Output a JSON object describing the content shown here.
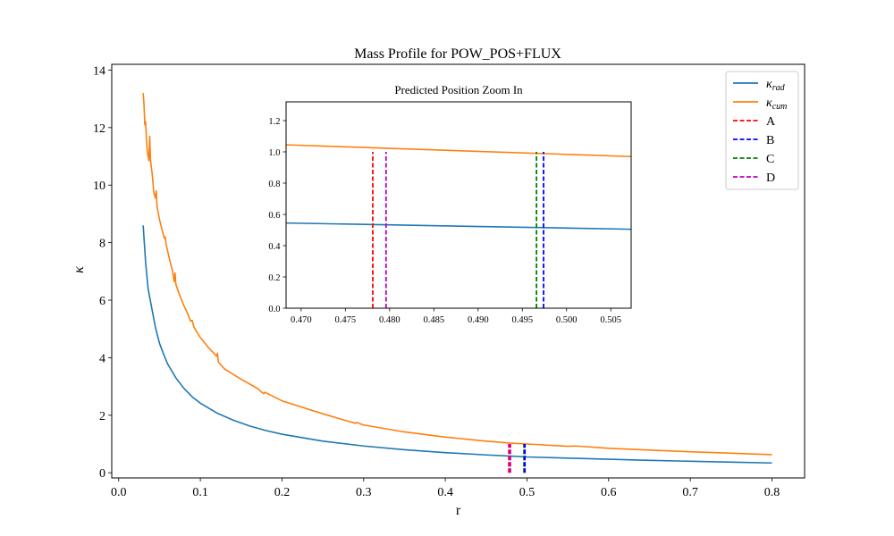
{
  "chart_data": [
    {
      "id": "main",
      "type": "line",
      "title": "Mass Profile for POW_POS+FLUX",
      "xlabel": "r",
      "ylabel": "κ",
      "xlim": [
        -0.0085,
        0.84
      ],
      "ylim": [
        -0.18,
        14.2
      ],
      "xticks": [
        0.0,
        0.1,
        0.2,
        0.3,
        0.4,
        0.5,
        0.6,
        0.7,
        0.8
      ],
      "xtick_labels": [
        "0.0",
        "0.1",
        "0.2",
        "0.3",
        "0.4",
        "0.5",
        "0.6",
        "0.7",
        "0.8"
      ],
      "yticks": [
        0,
        2,
        4,
        6,
        8,
        10,
        12,
        14
      ],
      "ytick_labels": [
        "0",
        "2",
        "4",
        "6",
        "8",
        "10",
        "12",
        "14"
      ],
      "series": [
        {
          "name": "κ_rad",
          "color": "#1f77b4",
          "points": [
            [
              0.03,
              8.6
            ],
            [
              0.033,
              7.3
            ],
            [
              0.036,
              6.4
            ],
            [
              0.04,
              5.8
            ],
            [
              0.045,
              5.05
            ],
            [
              0.05,
              4.5
            ],
            [
              0.055,
              4.12
            ],
            [
              0.06,
              3.78
            ],
            [
              0.07,
              3.3
            ],
            [
              0.08,
              2.93
            ],
            [
              0.09,
              2.64
            ],
            [
              0.1,
              2.42
            ],
            [
              0.12,
              2.08
            ],
            [
              0.14,
              1.83
            ],
            [
              0.16,
              1.63
            ],
            [
              0.18,
              1.47
            ],
            [
              0.2,
              1.34
            ],
            [
              0.25,
              1.1
            ],
            [
              0.3,
              0.93
            ],
            [
              0.35,
              0.8
            ],
            [
              0.4,
              0.7
            ],
            [
              0.45,
              0.62
            ],
            [
              0.48,
              0.58
            ],
            [
              0.5,
              0.55
            ],
            [
              0.55,
              0.51
            ],
            [
              0.6,
              0.47
            ],
            [
              0.65,
              0.43
            ],
            [
              0.7,
              0.4
            ],
            [
              0.75,
              0.37
            ],
            [
              0.8,
              0.34
            ]
          ]
        },
        {
          "name": "κ_cum",
          "color": "#ff7f0e",
          "points": [
            [
              0.03,
              13.2
            ],
            [
              0.031,
              12.8
            ],
            [
              0.032,
              12.1
            ],
            [
              0.033,
              12.2
            ],
            [
              0.034,
              11.6
            ],
            [
              0.035,
              11.2
            ],
            [
              0.037,
              10.85
            ],
            [
              0.038,
              11.7
            ],
            [
              0.039,
              10.85
            ],
            [
              0.041,
              10.4
            ],
            [
              0.043,
              9.75
            ],
            [
              0.045,
              9.55
            ],
            [
              0.046,
              9.8
            ],
            [
              0.047,
              9.25
            ],
            [
              0.05,
              8.8
            ],
            [
              0.054,
              8.35
            ],
            [
              0.056,
              8.15
            ],
            [
              0.057,
              8.2
            ],
            [
              0.058,
              7.95
            ],
            [
              0.062,
              7.45
            ],
            [
              0.066,
              7.0
            ],
            [
              0.068,
              6.65
            ],
            [
              0.069,
              6.95
            ],
            [
              0.07,
              6.55
            ],
            [
              0.075,
              6.15
            ],
            [
              0.08,
              5.8
            ],
            [
              0.085,
              5.5
            ],
            [
              0.088,
              5.27
            ],
            [
              0.09,
              5.3
            ],
            [
              0.092,
              5.07
            ],
            [
              0.1,
              4.7
            ],
            [
              0.11,
              4.35
            ],
            [
              0.12,
              4.05
            ],
            [
              0.121,
              4.15
            ],
            [
              0.122,
              3.85
            ],
            [
              0.13,
              3.6
            ],
            [
              0.15,
              3.25
            ],
            [
              0.17,
              2.93
            ],
            [
              0.176,
              2.78
            ],
            [
              0.178,
              2.75
            ],
            [
              0.179,
              2.8
            ],
            [
              0.2,
              2.5
            ],
            [
              0.25,
              2.05
            ],
            [
              0.28,
              1.8
            ],
            [
              0.29,
              1.72
            ],
            [
              0.291,
              1.75
            ],
            [
              0.3,
              1.66
            ],
            [
              0.35,
              1.42
            ],
            [
              0.4,
              1.24
            ],
            [
              0.45,
              1.1
            ],
            [
              0.48,
              1.03
            ],
            [
              0.5,
              1.0
            ],
            [
              0.55,
              0.92
            ],
            [
              0.56,
              0.93
            ],
            [
              0.6,
              0.85
            ],
            [
              0.65,
              0.79
            ],
            [
              0.7,
              0.73
            ],
            [
              0.75,
              0.68
            ],
            [
              0.8,
              0.63
            ]
          ]
        }
      ],
      "vlines": [
        {
          "name": "A",
          "x": 0.478,
          "ymax": 1.0,
          "color": "#ff0000"
        },
        {
          "name": "D",
          "x": 0.4795,
          "ymax": 1.0,
          "color": "#bf00bf"
        },
        {
          "name": "C",
          "x": 0.4965,
          "ymax": 1.0,
          "color": "#008000"
        },
        {
          "name": "B",
          "x": 0.4973,
          "ymax": 1.0,
          "color": "#0000ff"
        }
      ],
      "legend_position": "top-right",
      "legend": [
        {
          "label": "κ",
          "sub": "rad",
          "color": "#1f77b4",
          "style": "solid"
        },
        {
          "label": "κ",
          "sub": "cum",
          "color": "#ff7f0e",
          "style": "solid"
        },
        {
          "label": "A",
          "color": "#ff0000",
          "style": "dashed"
        },
        {
          "label": "B",
          "color": "#0000ff",
          "style": "dashed"
        },
        {
          "label": "C",
          "color": "#008000",
          "style": "dashed"
        },
        {
          "label": "D",
          "color": "#bf00bf",
          "style": "dashed"
        }
      ]
    },
    {
      "id": "inset",
      "type": "line",
      "title": "Predicted Position Zoom In",
      "xlabel": "",
      "ylabel": "",
      "xlim": [
        0.4683,
        0.5073
      ],
      "ylim": [
        0.0,
        1.32
      ],
      "xticks": [
        0.47,
        0.475,
        0.48,
        0.485,
        0.49,
        0.495,
        0.5,
        0.505
      ],
      "xtick_labels": [
        "0.470",
        "0.475",
        "0.480",
        "0.485",
        "0.490",
        "0.495",
        "0.500",
        "0.505"
      ],
      "yticks": [
        0.0,
        0.2,
        0.4,
        0.6,
        0.8,
        1.0,
        1.2
      ],
      "ytick_labels": [
        "0.0",
        "0.2",
        "0.4",
        "0.6",
        "0.8",
        "1.0",
        "1.2"
      ],
      "series": [
        {
          "name": "κ_rad",
          "color": "#1f77b4",
          "points": [
            [
              0.4683,
              0.545
            ],
            [
              0.5073,
              0.505
            ]
          ]
        },
        {
          "name": "κ_cum",
          "color": "#ff7f0e",
          "points": [
            [
              0.4683,
              1.045
            ],
            [
              0.5073,
              0.97
            ]
          ]
        }
      ],
      "vlines": [
        {
          "name": "A",
          "x": 0.4781,
          "ymax": 1.0,
          "color": "#ff0000"
        },
        {
          "name": "D",
          "x": 0.4796,
          "ymax": 1.0,
          "color": "#bf00bf"
        },
        {
          "name": "C",
          "x": 0.4966,
          "ymax": 1.0,
          "color": "#008000"
        },
        {
          "name": "B",
          "x": 0.4974,
          "ymax": 1.0,
          "color": "#0000ff"
        }
      ]
    }
  ]
}
